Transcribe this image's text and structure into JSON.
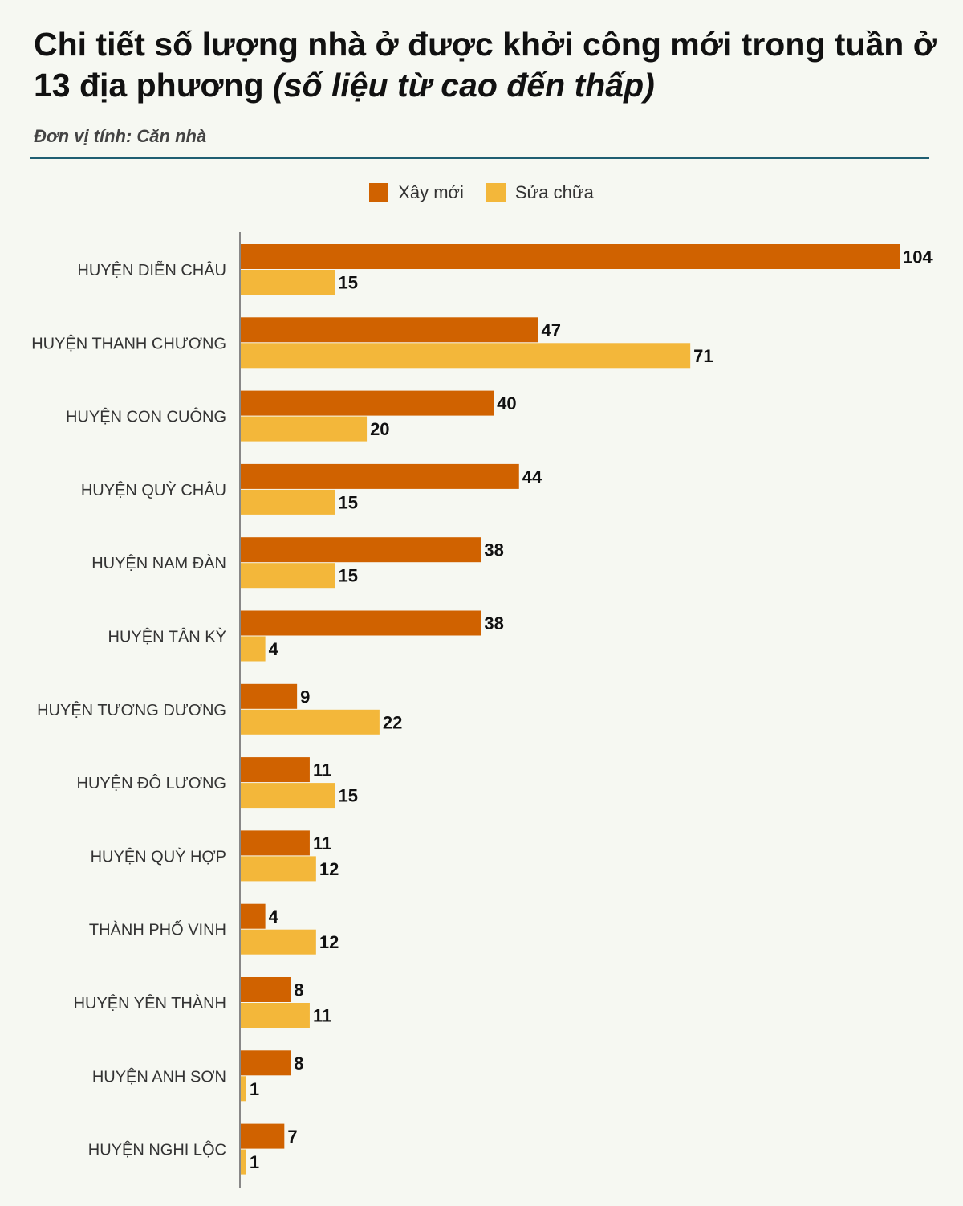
{
  "title": {
    "main": "Chi tiết số lượng nhà ở được khởi công mới trong tuần ở 13 địa phương",
    "emphasis": "(số liệu từ cao đến thấp)"
  },
  "unit_label": "Đơn vị tính: Căn nhà",
  "colors": {
    "xay_moi": "#d06200",
    "sua_chua": "#f3b73a",
    "axis": "#888888",
    "rule": "#1f5f72"
  },
  "chart_data": {
    "type": "bar",
    "orientation": "horizontal",
    "title": "Chi tiết số lượng nhà ở được khởi công mới trong tuần ở 13 địa phương (số liệu từ cao đến thấp)",
    "subtitle": "Đơn vị tính: Căn nhà",
    "xlabel": "",
    "ylabel": "",
    "xlim": [
      0,
      104
    ],
    "grid": false,
    "legend_position": "top-center",
    "categories": [
      "HUYỆN DIỄN CHÂU",
      "HUYỆN THANH CHƯƠNG",
      "HUYỆN CON CUÔNG",
      "HUYỆN QUỲ CHÂU",
      "HUYỆN NAM ĐÀN",
      "HUYỆN TÂN KỲ",
      "HUYỆN TƯƠNG DƯƠNG",
      "HUYỆN ĐÔ LƯƠNG",
      "HUYỆN QUỲ HỢP",
      "THÀNH PHỐ VINH",
      "HUYỆN YÊN THÀNH",
      "HUYỆN ANH SƠN",
      "HUYỆN NGHI LỘC"
    ],
    "series": [
      {
        "name": "Xây mới",
        "color": "#d06200",
        "values": [
          104,
          47,
          40,
          44,
          38,
          38,
          9,
          11,
          11,
          4,
          8,
          8,
          7
        ]
      },
      {
        "name": "Sửa chữa",
        "color": "#f3b73a",
        "values": [
          15,
          71,
          20,
          15,
          15,
          4,
          22,
          15,
          12,
          12,
          11,
          1,
          1
        ]
      }
    ]
  }
}
